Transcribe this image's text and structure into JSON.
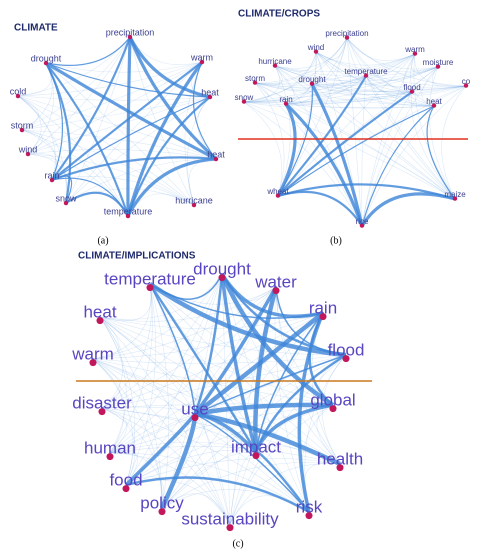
{
  "panels": [
    {
      "title": "CLIMATE",
      "caption": "(a)",
      "nodes": [
        "precipitation",
        "drought",
        "warm",
        "cold",
        "heat",
        "storm",
        "wind",
        "heat",
        "rain",
        "snow",
        "hurricane",
        "temperature"
      ]
    },
    {
      "title": "CLIMATE/CROPS",
      "caption": "(b)",
      "nodes": [
        "wind",
        "precipitation",
        "hurricane",
        "warm",
        "moisture",
        "storm",
        "temperature",
        "drought",
        "flood",
        "snow",
        "rain",
        "heat",
        "co",
        "wheat",
        "maize",
        "rice"
      ]
    },
    {
      "title": "CLIMATE/IMPLICATIONS",
      "caption": "(c)",
      "nodes": [
        "temperature",
        "drought",
        "water",
        "heat",
        "rain",
        "warm",
        "flood",
        "disaster",
        "use",
        "global",
        "human",
        "impact",
        "health",
        "food",
        "policy",
        "sustainability",
        "risk"
      ]
    }
  ]
}
